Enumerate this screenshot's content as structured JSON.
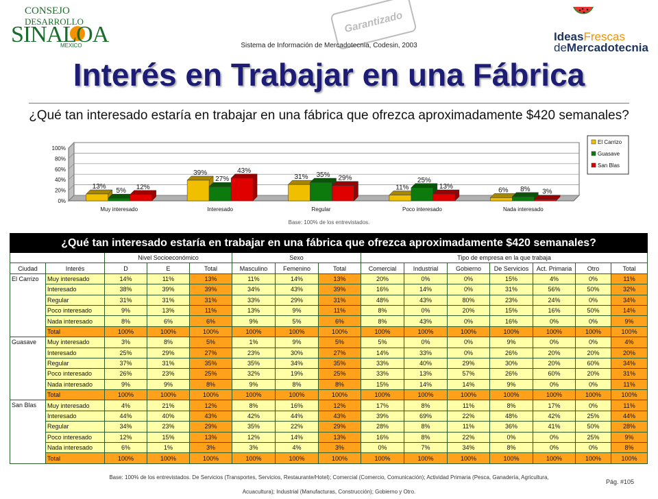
{
  "header": {
    "logo_left": {
      "line1": "CONSEJO",
      "line2": "DESARROLLO",
      "line3": "SINALOA",
      "line4": "MEXICO"
    },
    "stamp_text": "Garantizado",
    "system_text": "Sistema de Información de Mercadotecnia, Codesin, 2003",
    "logo_right": {
      "ideas": "Ideas",
      "frescas": "Frescas",
      "de": "de",
      "merc": "Mercadotecnia"
    }
  },
  "page_title": "Interés en Trabajar en una Fábrica",
  "question": "¿Qué tan interesado estaría en trabajar en una fábrica que ofrezca aproximadamente $420 semanales?",
  "chart_data": {
    "type": "bar",
    "categories": [
      "Muy interesado",
      "Interesado",
      "Regular",
      "Poco interesado",
      "Nada interesado"
    ],
    "series": [
      {
        "name": "El Carrizo",
        "color": "#f0c000",
        "values": [
          13,
          39,
          31,
          11,
          6
        ]
      },
      {
        "name": "Guasave",
        "color": "#0c7a0c",
        "values": [
          5,
          27,
          35,
          25,
          8
        ]
      },
      {
        "name": "San Blas",
        "color": "#e00000",
        "values": [
          12,
          43,
          29,
          13,
          3
        ]
      }
    ],
    "ylim": [
      0,
      100
    ],
    "yticks": [
      "0%",
      "20%",
      "40%",
      "60%",
      "80%",
      "100%"
    ],
    "ytick_values": [
      0,
      20,
      40,
      60,
      80,
      100
    ],
    "grid": true,
    "legend": "right",
    "data_labels": true
  },
  "base_note": "Base: 100% de los entrevistados.",
  "table": {
    "title": "¿Qué tan interesado estaría en trabajar en una fábrica que ofrezca aproximadamente $420 semanales?",
    "groups": {
      "nivel": "Nivel Socioeconómico",
      "sexo": "Sexo",
      "tipo": "Tipo de empresa en la que trabaja"
    },
    "columns": [
      "Ciudad",
      "Interés",
      "D",
      "E",
      "Total",
      "Masculino",
      "Femenino",
      "Total",
      "Comercial",
      "Industrial",
      "Gobierno",
      "De Servicios",
      "Act. Primaria",
      "Otro",
      "Total"
    ],
    "blocks": [
      {
        "city": "El Carrizo",
        "rows": [
          {
            "label": "Muy interesado",
            "values": [
              "14%",
              "11%",
              "13%",
              "11%",
              "14%",
              "13%",
              "20%",
              "0%",
              "0%",
              "15%",
              "4%",
              "0%",
              "11%"
            ]
          },
          {
            "label": "Interesado",
            "values": [
              "38%",
              "39%",
              "39%",
              "34%",
              "43%",
              "39%",
              "16%",
              "14%",
              "0%",
              "31%",
              "56%",
              "50%",
              "32%"
            ]
          },
          {
            "label": "Regular",
            "values": [
              "31%",
              "31%",
              "31%",
              "33%",
              "29%",
              "31%",
              "48%",
              "43%",
              "80%",
              "23%",
              "24%",
              "0%",
              "34%"
            ]
          },
          {
            "label": "Poco interesado",
            "values": [
              "9%",
              "13%",
              "11%",
              "13%",
              "9%",
              "11%",
              "8%",
              "0%",
              "20%",
              "15%",
              "16%",
              "50%",
              "14%"
            ]
          },
          {
            "label": "Nada interesado",
            "values": [
              "8%",
              "6%",
              "6%",
              "9%",
              "5%",
              "6%",
              "8%",
              "43%",
              "0%",
              "16%",
              "0%",
              "0%",
              "9%"
            ]
          },
          {
            "label": "Total",
            "values": [
              "100%",
              "100%",
              "100%",
              "100%",
              "100%",
              "100%",
              "100%",
              "100%",
              "100%",
              "100%",
              "100%",
              "100%",
              "100%"
            ]
          }
        ]
      },
      {
        "city": "Guasave",
        "rows": [
          {
            "label": "Muy interesado",
            "values": [
              "3%",
              "8%",
              "5%",
              "1%",
              "9%",
              "5%",
              "5%",
              "0%",
              "0%",
              "9%",
              "0%",
              "0%",
              "4%"
            ]
          },
          {
            "label": "Interesado",
            "values": [
              "25%",
              "29%",
              "27%",
              "23%",
              "30%",
              "27%",
              "14%",
              "33%",
              "0%",
              "26%",
              "20%",
              "20%",
              "20%"
            ]
          },
          {
            "label": "Regular",
            "values": [
              "37%",
              "31%",
              "35%",
              "35%",
              "34%",
              "35%",
              "33%",
              "40%",
              "29%",
              "30%",
              "20%",
              "60%",
              "34%"
            ]
          },
          {
            "label": "Poco interesado",
            "values": [
              "26%",
              "23%",
              "25%",
              "32%",
              "19%",
              "25%",
              "33%",
              "13%",
              "57%",
              "26%",
              "60%",
              "20%",
              "31%"
            ]
          },
          {
            "label": "Nada interesado",
            "values": [
              "9%",
              "9%",
              "8%",
              "9%",
              "8%",
              "8%",
              "15%",
              "14%",
              "14%",
              "9%",
              "0%",
              "0%",
              "11%"
            ]
          },
          {
            "label": "Total",
            "values": [
              "100%",
              "100%",
              "100%",
              "100%",
              "100%",
              "100%",
              "100%",
              "100%",
              "100%",
              "100%",
              "100%",
              "100%",
              "100%"
            ]
          }
        ]
      },
      {
        "city": "San Blas",
        "rows": [
          {
            "label": "Muy interesado",
            "values": [
              "4%",
              "21%",
              "12%",
              "8%",
              "16%",
              "12%",
              "17%",
              "8%",
              "11%",
              "8%",
              "17%",
              "0%",
              "11%"
            ]
          },
          {
            "label": "Interesado",
            "values": [
              "44%",
              "40%",
              "43%",
              "42%",
              "44%",
              "43%",
              "39%",
              "69%",
              "22%",
              "48%",
              "42%",
              "25%",
              "44%"
            ]
          },
          {
            "label": "Regular",
            "values": [
              "34%",
              "23%",
              "29%",
              "35%",
              "22%",
              "29%",
              "28%",
              "8%",
              "11%",
              "36%",
              "41%",
              "50%",
              "28%"
            ]
          },
          {
            "label": "Poco interesado",
            "values": [
              "12%",
              "15%",
              "13%",
              "12%",
              "14%",
              "13%",
              "16%",
              "8%",
              "22%",
              "0%",
              "0%",
              "25%",
              "9%"
            ]
          },
          {
            "label": "Nada interesado",
            "values": [
              "6%",
              "1%",
              "3%",
              "3%",
              "4%",
              "3%",
              "0%",
              "7%",
              "34%",
              "8%",
              "0%",
              "0%",
              "8%"
            ]
          },
          {
            "label": "Total",
            "values": [
              "100%",
              "100%",
              "100%",
              "100%",
              "100%",
              "100%",
              "100%",
              "100%",
              "100%",
              "100%",
              "100%",
              "100%",
              "100%"
            ]
          }
        ]
      }
    ]
  },
  "footer": {
    "line1": "Base: 100% de los entrevistados. De Servicios (Transportes, Servicios, Restaurante/Hotel); Comercial (Comercio, Comunicación); Actividad Primaria (Pesca, Ganadería, Agricultura,",
    "line2": "Acuacultura); Industrial (Manufacturas, Construcción); Gobierno y Otro."
  },
  "page_number": "Pág. #105"
}
